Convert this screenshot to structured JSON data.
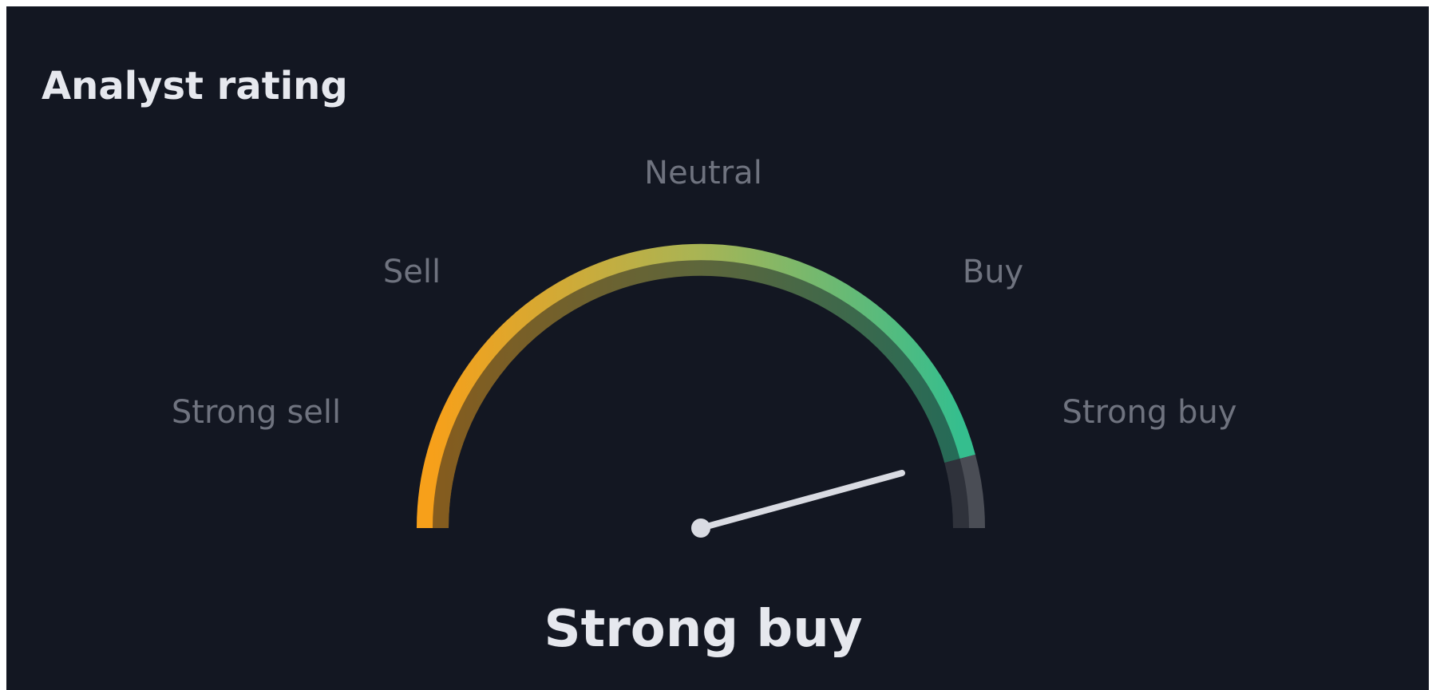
{
  "title": "Analyst rating",
  "labels": [
    "Strong sell",
    "Sell",
    "Neutral",
    "Buy",
    "Strong buy"
  ],
  "rating": "Strong buy"
}
